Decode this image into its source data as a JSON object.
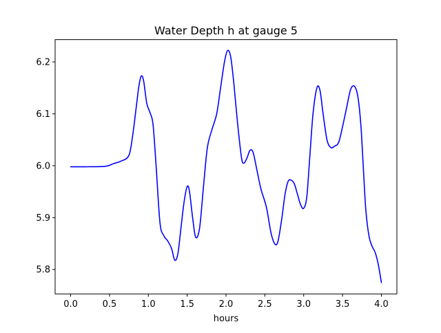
{
  "chart_data": {
    "type": "line",
    "title": "Water Depth h at gauge 5",
    "xlabel": "hours",
    "ylabel": "",
    "xlim": [
      -0.2,
      4.2
    ],
    "ylim": [
      5.753,
      6.243
    ],
    "xticks": [
      0.0,
      0.5,
      1.0,
      1.5,
      2.0,
      2.5,
      3.0,
      3.5,
      4.0
    ],
    "xtick_labels": [
      "0.0",
      "0.5",
      "1.0",
      "1.5",
      "2.0",
      "2.5",
      "3.0",
      "3.5",
      "4.0"
    ],
    "yticks": [
      5.8,
      5.9,
      6.0,
      6.1,
      6.2
    ],
    "ytick_labels": [
      "5.8",
      "5.9",
      "6.0",
      "6.1",
      "6.2"
    ],
    "grid": false,
    "series": [
      {
        "color": "#0000ff",
        "x": [
          0.0,
          0.2,
          0.45,
          0.55,
          0.65,
          0.75,
          0.8,
          0.85,
          0.88,
          0.91,
          0.94,
          0.98,
          1.02,
          1.06,
          1.1,
          1.15,
          1.2,
          1.25,
          1.3,
          1.34,
          1.38,
          1.42,
          1.46,
          1.5,
          1.53,
          1.57,
          1.61,
          1.66,
          1.71,
          1.76,
          1.82,
          1.88,
          1.93,
          1.98,
          2.02,
          2.06,
          2.1,
          2.15,
          2.2,
          2.23,
          2.27,
          2.31,
          2.35,
          2.4,
          2.45,
          2.52,
          2.58,
          2.63,
          2.67,
          2.72,
          2.76,
          2.8,
          2.84,
          2.88,
          2.92,
          2.96,
          3.0,
          3.04,
          3.08,
          3.12,
          3.17,
          3.21,
          3.25,
          3.3,
          3.35,
          3.4,
          3.45,
          3.5,
          3.55,
          3.6,
          3.64,
          3.68,
          3.71,
          3.74,
          3.77,
          3.8,
          3.84,
          3.88,
          3.92,
          3.96,
          4.0
        ],
        "y": [
          5.998,
          5.998,
          5.999,
          6.004,
          6.009,
          6.02,
          6.06,
          6.12,
          6.155,
          6.173,
          6.163,
          6.12,
          6.103,
          6.08,
          6.0,
          5.89,
          5.865,
          5.855,
          5.84,
          5.818,
          5.83,
          5.88,
          5.93,
          5.96,
          5.95,
          5.9,
          5.862,
          5.88,
          5.96,
          6.035,
          6.07,
          6.1,
          6.15,
          6.2,
          6.222,
          6.21,
          6.16,
          6.08,
          6.015,
          6.005,
          6.015,
          6.03,
          6.025,
          5.99,
          5.955,
          5.92,
          5.87,
          5.849,
          5.855,
          5.9,
          5.945,
          5.97,
          5.972,
          5.965,
          5.945,
          5.925,
          5.918,
          5.94,
          6.02,
          6.1,
          6.15,
          6.145,
          6.1,
          6.05,
          6.035,
          6.038,
          6.045,
          6.075,
          6.11,
          6.145,
          6.154,
          6.145,
          6.12,
          6.07,
          5.99,
          5.915,
          5.865,
          5.845,
          5.833,
          5.81,
          5.775
        ]
      }
    ]
  }
}
